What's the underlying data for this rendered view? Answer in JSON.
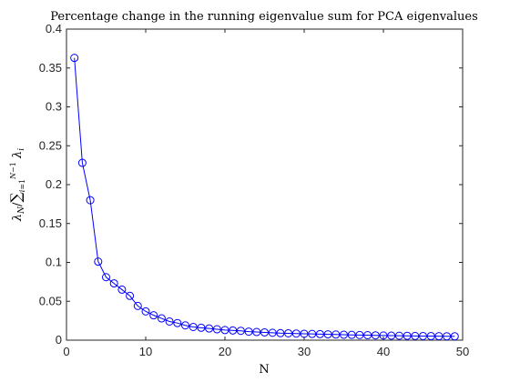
{
  "chart_data": {
    "type": "line",
    "title": "Percentage change in the running eigenvalue sum for PCA eigenvalues",
    "xlabel": "N",
    "ylabel": "λ_N / Σ_{i=1}^{N−1} λ_i",
    "xlim": [
      0,
      50
    ],
    "ylim": [
      0,
      0.4
    ],
    "xticks": [
      0,
      10,
      20,
      30,
      40,
      50
    ],
    "yticks": [
      0,
      0.05,
      0.1,
      0.15,
      0.2,
      0.25,
      0.3,
      0.35,
      0.4
    ],
    "xtick_labels": [
      "0",
      "10",
      "20",
      "30",
      "40",
      "50"
    ],
    "ytick_labels": [
      "0",
      "0.05",
      "0.1",
      "0.15",
      "0.2",
      "0.25",
      "0.3",
      "0.35",
      "0.4"
    ],
    "grid": false,
    "legend": "none",
    "color": "#0000ff",
    "marker": "circle",
    "series": [
      {
        "x": [
          1,
          2,
          3,
          4,
          5,
          6,
          7,
          8,
          9,
          10,
          11,
          12,
          13,
          14,
          15,
          16,
          17,
          18,
          19,
          20,
          21,
          22,
          23,
          24,
          25,
          26,
          27,
          28,
          29,
          30,
          31,
          32,
          33,
          34,
          35,
          36,
          37,
          38,
          39,
          40,
          41,
          42,
          43,
          44,
          45,
          46,
          47,
          48,
          49
        ],
        "values": [
          0.363,
          0.228,
          0.18,
          0.101,
          0.081,
          0.073,
          0.065,
          0.057,
          0.044,
          0.037,
          0.032,
          0.028,
          0.024,
          0.022,
          0.019,
          0.017,
          0.016,
          0.015,
          0.014,
          0.013,
          0.0125,
          0.012,
          0.011,
          0.0105,
          0.01,
          0.0095,
          0.009,
          0.0088,
          0.0085,
          0.0082,
          0.008,
          0.0078,
          0.0075,
          0.0073,
          0.007,
          0.0068,
          0.0066,
          0.0064,
          0.0062,
          0.006,
          0.0058,
          0.0057,
          0.0056,
          0.0054,
          0.0053,
          0.0052,
          0.0051,
          0.005,
          0.0049
        ]
      }
    ]
  }
}
